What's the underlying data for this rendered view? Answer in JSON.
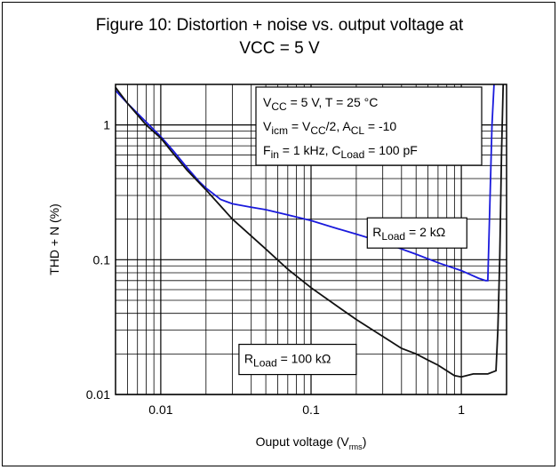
{
  "title_line1": "Figure 10: Distortion + noise vs. output voltage at",
  "title_line2": "VCC = 5 V",
  "chart_data": {
    "type": "line",
    "title": "Figure 10: Distortion + noise vs. output voltage at VCC = 5 V",
    "xlabel": "Ouput voltage (V",
    "xlabel_sub": "rms",
    "xlabel_end": ")",
    "ylabel": "THD + N (%)",
    "xscale": "log",
    "yscale": "log",
    "xlim": [
      0.005,
      2
    ],
    "ylim": [
      0.01,
      2
    ],
    "xticks": [
      0.01,
      0.1,
      1
    ],
    "xtick_labels": [
      "0.01",
      "0.1",
      "1"
    ],
    "yticks": [
      0.01,
      0.1,
      1
    ],
    "ytick_labels": [
      "0.01",
      "0.1",
      "1"
    ],
    "grid": true,
    "conditions": [
      [
        [
          "V",
          ""
        ],
        [
          "CC",
          "sub"
        ],
        [
          " = 5 V, T = 25 °C",
          ""
        ]
      ],
      [
        [
          "V",
          ""
        ],
        [
          "icm",
          "sub"
        ],
        [
          " = V",
          ""
        ],
        [
          "CC",
          "sub"
        ],
        [
          "/2, A",
          ""
        ],
        [
          "CL",
          "sub"
        ],
        [
          " = -10",
          ""
        ]
      ],
      [
        [
          "F",
          ""
        ],
        [
          "in",
          "sub"
        ],
        [
          " = 1 kHz, C",
          ""
        ],
        [
          "Load",
          "sub"
        ],
        [
          " = 100 pF",
          ""
        ]
      ]
    ],
    "series": [
      {
        "name": "R_Load = 2 kΩ",
        "label": [
          [
            "R",
            ""
          ],
          [
            "Load",
            "sub"
          ],
          [
            " = 2 kΩ",
            ""
          ]
        ],
        "color": "#1a1adc",
        "label_anchor": [
          0.25,
          0.158
        ],
        "points": [
          [
            0.005,
            1.8
          ],
          [
            0.006,
            1.45
          ],
          [
            0.008,
            1.05
          ],
          [
            0.01,
            0.82
          ],
          [
            0.012,
            0.65
          ],
          [
            0.015,
            0.48
          ],
          [
            0.018,
            0.38
          ],
          [
            0.02,
            0.34
          ],
          [
            0.025,
            0.28
          ],
          [
            0.03,
            0.26
          ],
          [
            0.04,
            0.245
          ],
          [
            0.05,
            0.235
          ],
          [
            0.07,
            0.215
          ],
          [
            0.1,
            0.195
          ],
          [
            0.15,
            0.17
          ],
          [
            0.2,
            0.155
          ],
          [
            0.3,
            0.135
          ],
          [
            0.5,
            0.11
          ],
          [
            0.7,
            0.095
          ],
          [
            1.0,
            0.083
          ],
          [
            1.3,
            0.073
          ],
          [
            1.45,
            0.07
          ],
          [
            1.5,
            0.07
          ],
          [
            1.6,
            1.0
          ],
          [
            1.65,
            2.0
          ]
        ]
      },
      {
        "name": "R_Load = 100 kΩ",
        "label": [
          [
            "R",
            ""
          ],
          [
            "Load",
            "sub"
          ],
          [
            " = 100 kΩ",
            ""
          ]
        ],
        "color": "#111111",
        "label_anchor": [
          0.035,
          0.0182
        ],
        "points": [
          [
            0.005,
            1.9
          ],
          [
            0.006,
            1.45
          ],
          [
            0.008,
            1.0
          ],
          [
            0.01,
            0.8
          ],
          [
            0.012,
            0.62
          ],
          [
            0.015,
            0.46
          ],
          [
            0.02,
            0.33
          ],
          [
            0.03,
            0.2
          ],
          [
            0.05,
            0.12
          ],
          [
            0.07,
            0.085
          ],
          [
            0.1,
            0.062
          ],
          [
            0.15,
            0.045
          ],
          [
            0.2,
            0.036
          ],
          [
            0.3,
            0.027
          ],
          [
            0.4,
            0.022
          ],
          [
            0.5,
            0.02
          ],
          [
            0.6,
            0.018
          ],
          [
            0.7,
            0.0165
          ],
          [
            0.8,
            0.015
          ],
          [
            0.9,
            0.0138
          ],
          [
            1.0,
            0.0135
          ],
          [
            1.2,
            0.0142
          ],
          [
            1.5,
            0.0142
          ],
          [
            1.7,
            0.015
          ],
          [
            1.75,
            0.03
          ],
          [
            1.8,
            0.1
          ],
          [
            1.85,
            0.6
          ],
          [
            1.9,
            2.0
          ]
        ]
      }
    ]
  }
}
